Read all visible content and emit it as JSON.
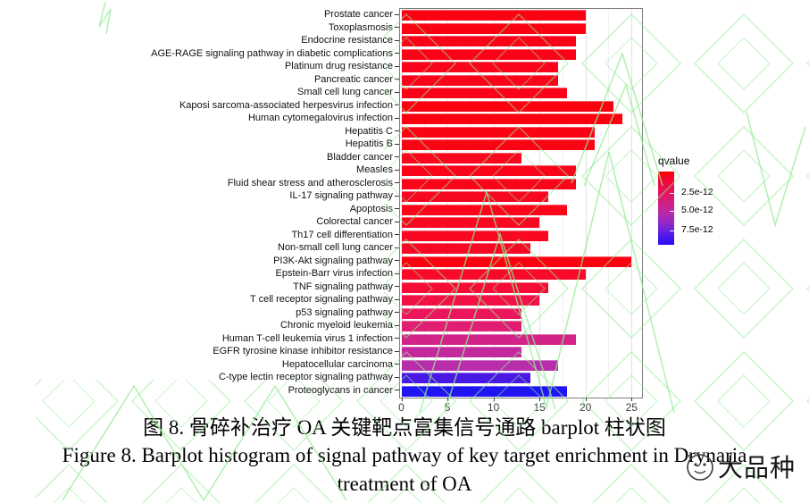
{
  "figure": {
    "caption_line1": "图 8. 骨碎补治疗 OA 关键靶点富集信号通路 barplot 柱状图",
    "caption_line2": "Figure 8. Barplot histogram of signal pathway of key target enrichment in Drynaria",
    "caption_line3": "treatment of OA",
    "stamp_text": "大品种"
  },
  "chart_data": {
    "type": "bar",
    "orientation": "horizontal",
    "title": "",
    "xlabel": "",
    "ylabel": "",
    "xlim": [
      0,
      26.3
    ],
    "x_ticks": [
      0,
      5,
      10,
      15,
      20,
      25
    ],
    "x_tick_labels": [
      "0",
      "5",
      "10",
      "15",
      "20",
      "25"
    ],
    "grid": true,
    "legend": {
      "title": "qvalue",
      "position": "right",
      "tick_labels": [
        "2.5e-12",
        "5.0e-12",
        "7.5e-12"
      ],
      "gradient_top_color": "#FF0000",
      "gradient_bottom_color": "#2A0DF8"
    },
    "categories": [
      "Prostate cancer",
      "Toxoplasmosis",
      "Endocrine resistance",
      "AGE-RAGE signaling pathway in diabetic complications",
      "Platinum drug resistance",
      "Pancreatic cancer",
      "Small cell lung cancer",
      "Kaposi sarcoma-associated herpesvirus infection",
      "Human cytomegalovirus infection",
      "Hepatitis C",
      "Hepatitis B",
      "Bladder cancer",
      "Measles",
      "Fluid shear stress and atherosclerosis",
      "IL-17 signaling pathway",
      "Apoptosis",
      "Colorectal cancer",
      "Th17 cell differentiation",
      "Non-small cell lung cancer",
      "PI3K-Akt signaling pathway",
      "Epstein-Barr virus infection",
      "TNF signaling pathway",
      "T cell receptor signaling pathway",
      "p53 signaling pathway",
      "Chronic myeloid leukemia",
      "Human T-cell leukemia virus 1 infection",
      "EGFR tyrosine kinase inhibitor resistance",
      "Hepatocellular carcinoma",
      "C-type lectin receptor signaling pathway",
      "Proteoglycans in cancer"
    ],
    "values": [
      20,
      20,
      19,
      19,
      17,
      17,
      18,
      23,
      24,
      21,
      21,
      13,
      19,
      19,
      16,
      18,
      15,
      16,
      14,
      25,
      20,
      16,
      15,
      13,
      13,
      19,
      13,
      17,
      14,
      18
    ],
    "bar_colors": [
      "#FB0213",
      "#FB0213",
      "#FA0317",
      "#FA0317",
      "#FA041B",
      "#FA041B",
      "#FA0319",
      "#FB0211",
      "#FB0110",
      "#FA0314",
      "#FA0314",
      "#F9061F",
      "#FA041A",
      "#FA041A",
      "#F80722",
      "#FA0519",
      "#F80823",
      "#F80822",
      "#F70925",
      "#FB0211",
      "#F80A28",
      "#F60D37",
      "#F21147",
      "#EB165B",
      "#E01E72",
      "#D22389",
      "#C4289D",
      "#B82DAA",
      "#4918E3",
      "#2015F2"
    ],
    "watermark_color": "#95EB95"
  }
}
